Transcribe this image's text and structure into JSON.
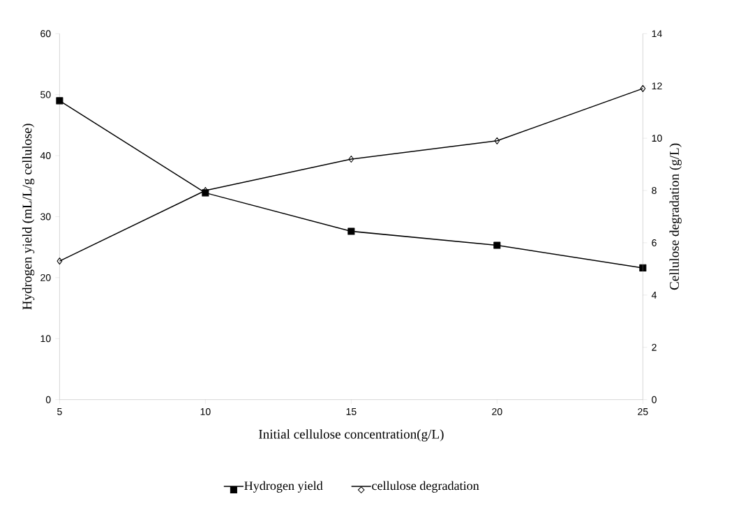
{
  "chart_data": {
    "type": "line",
    "xlabel": "Initial cellulose concentration(g/L)",
    "ylabel": "Hydrogen yield (mL/L/g cellulose)",
    "y2label": "Cellulose degradation (g/L)",
    "x": [
      5,
      10,
      15,
      20,
      25
    ],
    "xlim": [
      5,
      25
    ],
    "xticks": [
      5,
      10,
      15,
      20,
      25
    ],
    "ylim": [
      0,
      60
    ],
    "yticks": [
      0,
      10,
      20,
      30,
      40,
      50,
      60
    ],
    "y2lim": [
      0,
      14
    ],
    "y2ticks": [
      0,
      2,
      4,
      6,
      8,
      10,
      12,
      14
    ],
    "grid": false,
    "legend": "bottom",
    "series": [
      {
        "name": "Hydrogen yield",
        "color": "#000000",
        "marker": "square",
        "values": [
          49.0,
          33.9,
          27.6,
          25.3,
          21.6
        ]
      },
      {
        "name": "cellulose degradation",
        "color": "#000000",
        "marker": "diamond",
        "axis": "y2",
        "values": [
          5.3,
          8.0,
          9.2,
          9.9,
          11.9
        ]
      }
    ]
  }
}
